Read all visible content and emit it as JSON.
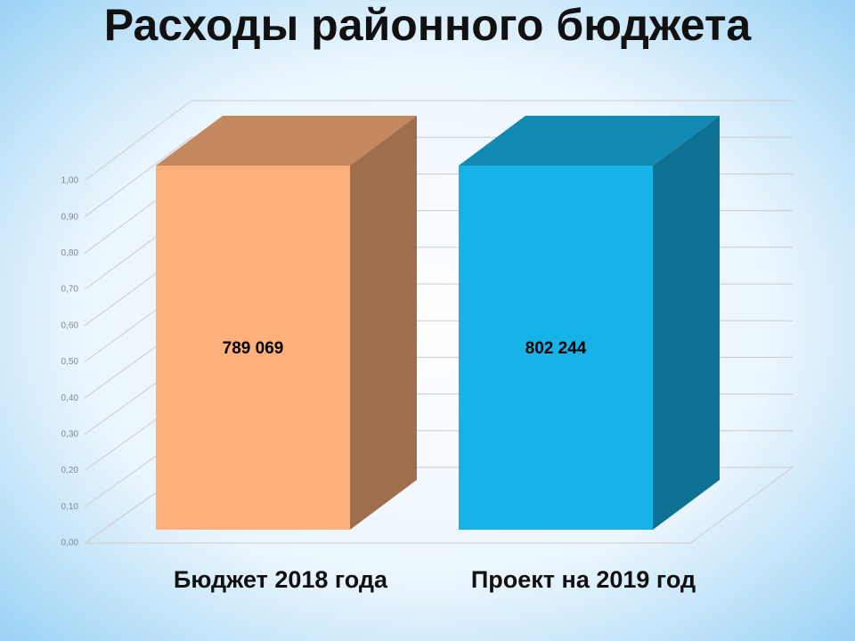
{
  "chart_data": {
    "type": "bar",
    "title": "Расходы районного бюджета",
    "categories": [
      "Бюджет 2018 года",
      "Проект на 2019 год"
    ],
    "values": [
      789069,
      802244
    ],
    "value_labels": [
      "789 069",
      "802 244"
    ],
    "colors": [
      "#fdb07a",
      "#17b2e8"
    ],
    "ylim": [
      0,
      1
    ],
    "yticks": [
      {
        "value": 0,
        "label": "0,00"
      },
      {
        "value": 0.1,
        "label": "0,10"
      },
      {
        "value": 0.2,
        "label": "0,20"
      },
      {
        "value": 0.3,
        "label": "0,30"
      },
      {
        "value": 0.4,
        "label": "0,40"
      },
      {
        "value": 0.5,
        "label": "0,50"
      },
      {
        "value": 0.6,
        "label": "0,60"
      },
      {
        "value": 0.7,
        "label": "0,70"
      },
      {
        "value": 0.8,
        "label": "0,80"
      },
      {
        "value": 0.9,
        "label": "0,90"
      },
      {
        "value": 1,
        "label": "1,00"
      }
    ],
    "grid": true
  }
}
